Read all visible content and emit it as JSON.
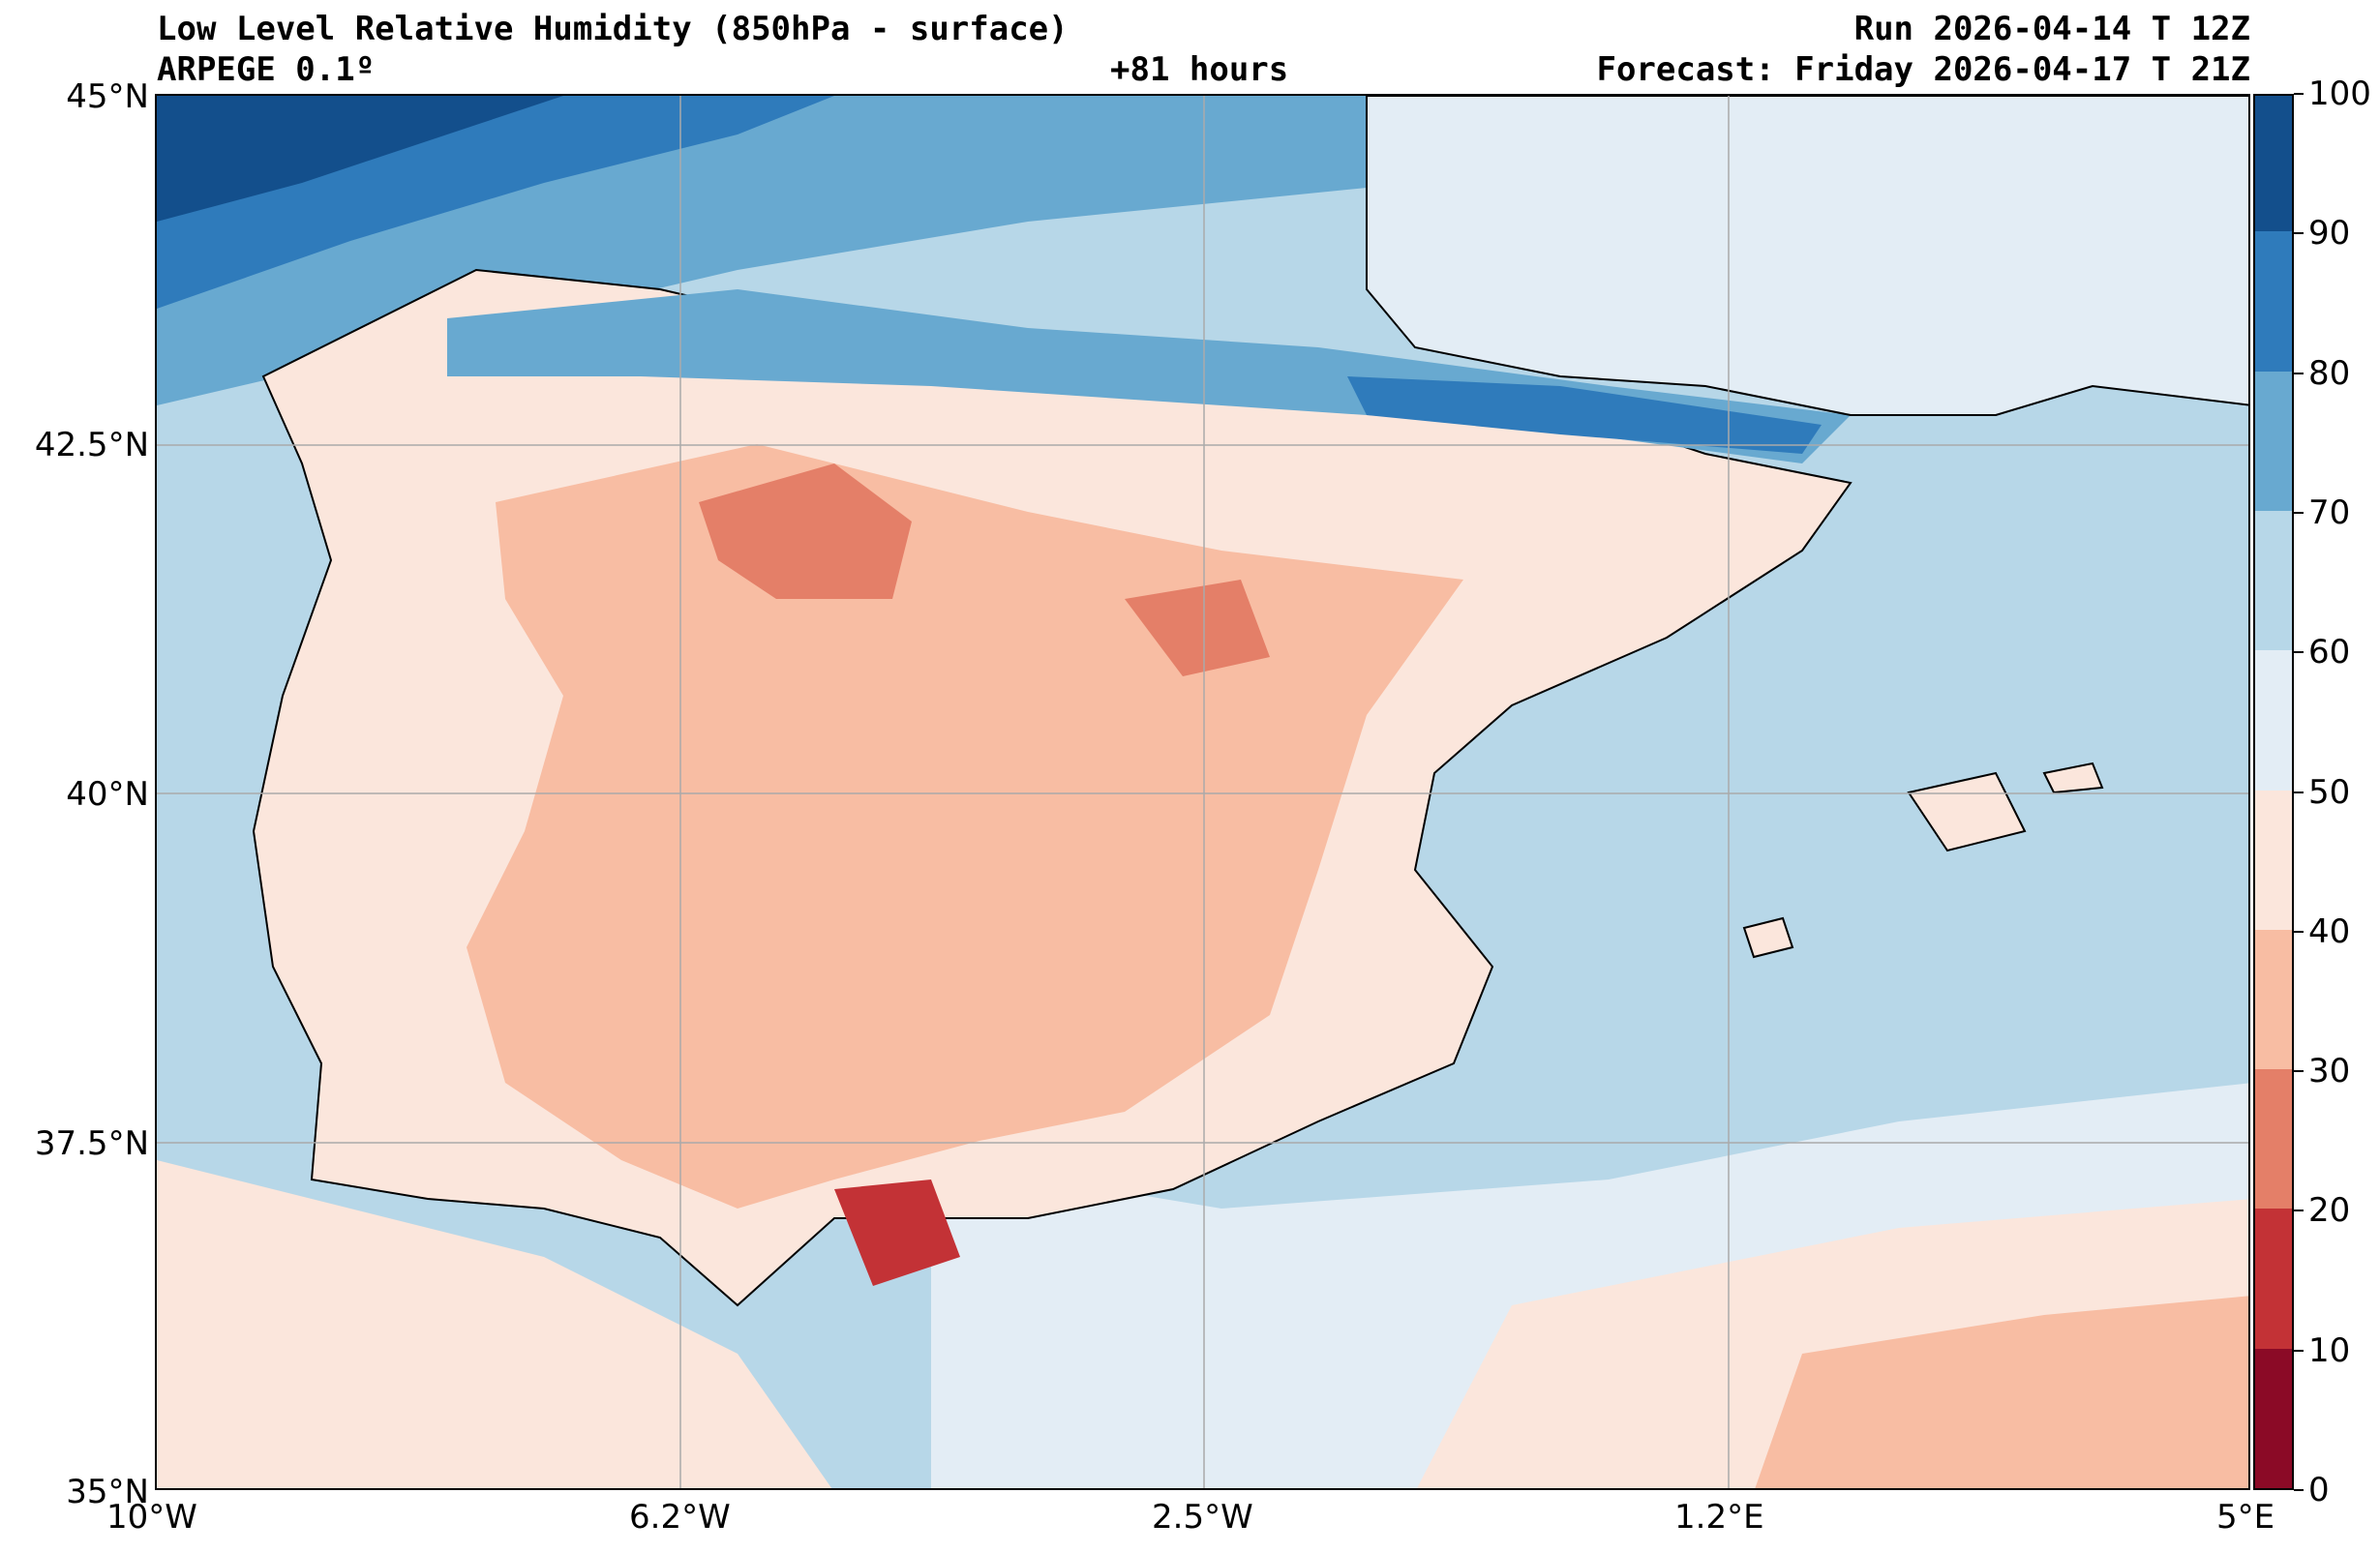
{
  "header": {
    "title": "Low Level Relative Humidity (850hPa - surface)",
    "model": "ARPEGE 0.1º",
    "lead": "+81 hours",
    "run": "Run 2026-04-14 T 12Z",
    "forecast": "Forecast: Friday 2026-04-17 T 21Z"
  },
  "map": {
    "lat_labels": [
      "45°N",
      "42.5°N",
      "40°N",
      "37.5°N",
      "35°N"
    ],
    "lon_labels": [
      "10°W",
      "6.2°W",
      "2.5°W",
      "1.2°E",
      "5°E"
    ],
    "lat_range": [
      35,
      45
    ],
    "lon_range": [
      -10,
      5
    ],
    "ocean_color": "#b7d7e8",
    "land_dry_color": "#f5b39a",
    "coast_color": "#000000"
  },
  "colorbar": {
    "levels": [
      "0",
      "10",
      "20",
      "30",
      "40",
      "50",
      "60",
      "70",
      "80",
      "90",
      "100"
    ],
    "colors": [
      "#8b0a26",
      "#c33236",
      "#e47f68",
      "#f8bda3",
      "#fbe6dc",
      "#e3edf5",
      "#b7d7e8",
      "#68a9d0",
      "#2f7bbb",
      "#134f8c"
    ]
  }
}
